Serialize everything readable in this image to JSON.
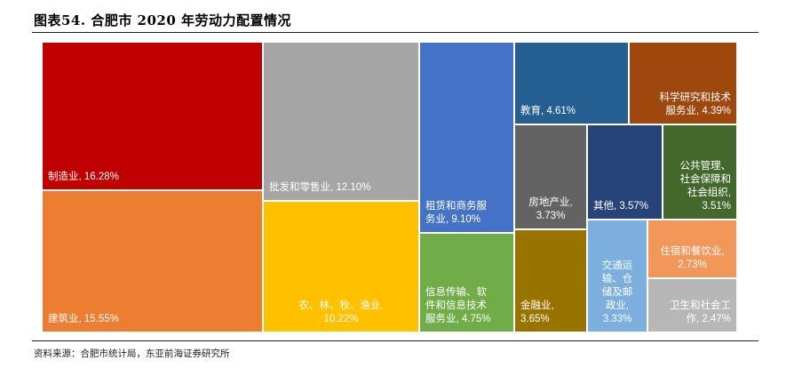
{
  "header": {
    "title": "图表54. 合肥市 2020 年劳动力配置情况",
    "source": "资料来源：合肥市统计局，东亚前海证券研究所"
  },
  "chart_data": {
    "type": "treemap",
    "title": "图表54. 合肥市 2020 年劳动力配置情况",
    "unit": "%",
    "items": [
      {
        "label": "制造业, 16.28%",
        "name": "制造业",
        "value": 16.28,
        "color": "#C00000"
      },
      {
        "label": "建筑业, 15.55%",
        "name": "建筑业",
        "value": 15.55,
        "color": "#ED7D31"
      },
      {
        "label": "批发和零售业, 12.10%",
        "name": "批发和零售业",
        "value": 12.1,
        "color": "#A5A5A5"
      },
      {
        "label": "农、林、牧、渔业, 10.22%",
        "name": "农、林、牧、渔业",
        "value": 10.22,
        "color": "#FFC000"
      },
      {
        "label": "租赁和商务服务业, 9.10%",
        "name": "租赁和商务服务业",
        "value": 9.1,
        "color": "#4472C4"
      },
      {
        "label": "信息传输、软件和信息技术服务业, 4.75%",
        "name": "信息传输、软件和信息技术服务业",
        "value": 4.75,
        "color": "#70AD47"
      },
      {
        "label": "教育, 4.61%",
        "name": "教育",
        "value": 4.61,
        "color": "#255E91"
      },
      {
        "label": "科学研究和技术服务业, 4.39%",
        "name": "科学研究和技术服务业",
        "value": 4.39,
        "color": "#9E480E"
      },
      {
        "label": "房地产业, 3.73%",
        "name": "房地产业",
        "value": 3.73,
        "color": "#636363"
      },
      {
        "label": "其他, 3.57%",
        "name": "其他",
        "value": 3.57,
        "color": "#264478"
      },
      {
        "label": "公共管理、社会保障和社会组织, 3.51%",
        "name": "公共管理、社会保障和社会组织",
        "value": 3.51,
        "color": "#43682B"
      },
      {
        "label": "金融业, 3.65%",
        "name": "金融业",
        "value": 3.65,
        "color": "#997300"
      },
      {
        "label": "交通运输、仓储及邮政业, 3.33%",
        "name": "交通运输、仓储及邮政业",
        "value": 3.33,
        "color": "#7CAFDD"
      },
      {
        "label": "住宿和餐饮业, 2.73%",
        "name": "住宿和餐饮业",
        "value": 2.73,
        "color": "#F1975A"
      },
      {
        "label": "卫生和社会工作, 2.47%",
        "name": "卫生和社会工作",
        "value": 2.47,
        "color": "#B7B7B7"
      }
    ]
  }
}
